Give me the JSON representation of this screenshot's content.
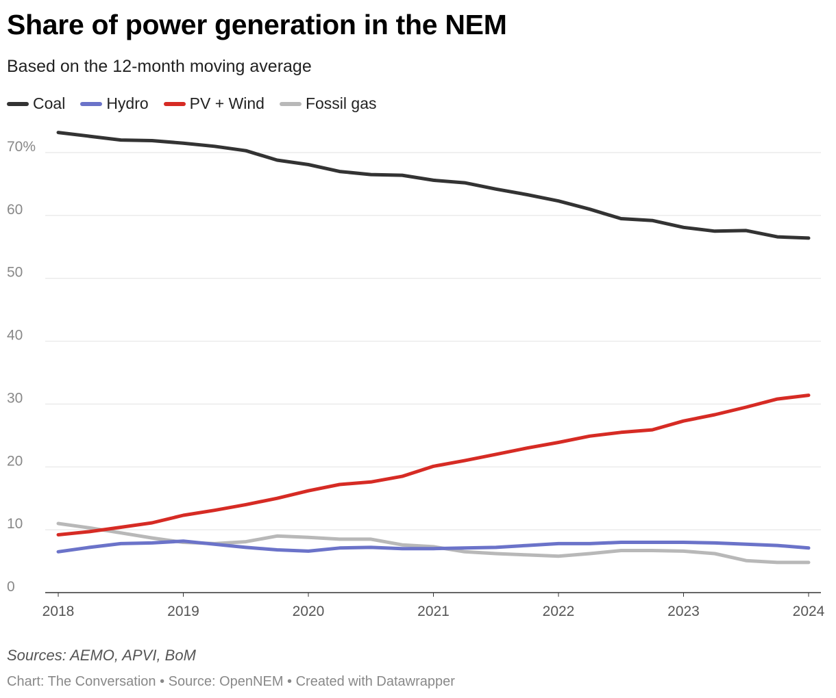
{
  "title": "Share of power generation in the NEM",
  "subtitle": "Based on the 12-month moving average",
  "source": "Sources: AEMO, APVI, BoM",
  "credit": "Chart: The Conversation • Source: OpenNEM • Created with Datawrapper",
  "legend": [
    {
      "label": "Coal",
      "color": "#333333"
    },
    {
      "label": "Hydro",
      "color": "#6b73c9"
    },
    {
      "label": "PV + Wind",
      "color": "#d62b24"
    },
    {
      "label": "Fossil gas",
      "color": "#b8b8b8"
    }
  ],
  "chart_data": {
    "type": "line",
    "xlabel": "",
    "ylabel": "",
    "xlim": [
      2018,
      2024
    ],
    "ylim": [
      0,
      70
    ],
    "y_ticks": [
      0,
      10,
      20,
      30,
      40,
      50,
      60,
      70
    ],
    "y_tick_labels": [
      "0",
      "10",
      "20",
      "30",
      "40",
      "50",
      "60",
      "70%"
    ],
    "x_ticks": [
      2018,
      2019,
      2020,
      2021,
      2022,
      2023,
      2024
    ],
    "x_tick_labels": [
      "2018",
      "2019",
      "2020",
      "2021",
      "2022",
      "2023",
      "2024"
    ],
    "grid": true,
    "legend_position": "top-left",
    "series": [
      {
        "name": "Coal",
        "color": "#333333",
        "points": [
          [
            2018.0,
            73.2
          ],
          [
            2018.25,
            72.6
          ],
          [
            2018.5,
            72.0
          ],
          [
            2018.75,
            71.9
          ],
          [
            2019.0,
            71.5
          ],
          [
            2019.25,
            71.0
          ],
          [
            2019.5,
            70.3
          ],
          [
            2019.75,
            68.8
          ],
          [
            2020.0,
            68.1
          ],
          [
            2020.25,
            67.0
          ],
          [
            2020.5,
            66.5
          ],
          [
            2020.75,
            66.4
          ],
          [
            2021.0,
            65.6
          ],
          [
            2021.25,
            65.2
          ],
          [
            2021.5,
            64.2
          ],
          [
            2021.75,
            63.3
          ],
          [
            2022.0,
            62.3
          ],
          [
            2022.25,
            61.0
          ],
          [
            2022.5,
            59.5
          ],
          [
            2022.75,
            59.2
          ],
          [
            2023.0,
            58.1
          ],
          [
            2023.25,
            57.5
          ],
          [
            2023.5,
            57.6
          ],
          [
            2023.75,
            56.6
          ],
          [
            2024.0,
            56.4
          ]
        ]
      },
      {
        "name": "Hydro",
        "color": "#6b73c9",
        "points": [
          [
            2018.0,
            6.5
          ],
          [
            2018.25,
            7.2
          ],
          [
            2018.5,
            7.8
          ],
          [
            2018.75,
            7.9
          ],
          [
            2019.0,
            8.2
          ],
          [
            2019.25,
            7.7
          ],
          [
            2019.5,
            7.2
          ],
          [
            2019.75,
            6.8
          ],
          [
            2020.0,
            6.6
          ],
          [
            2020.25,
            7.1
          ],
          [
            2020.5,
            7.2
          ],
          [
            2020.75,
            7.0
          ],
          [
            2021.0,
            7.0
          ],
          [
            2021.25,
            7.1
          ],
          [
            2021.5,
            7.2
          ],
          [
            2021.75,
            7.5
          ],
          [
            2022.0,
            7.8
          ],
          [
            2022.25,
            7.8
          ],
          [
            2022.5,
            8.0
          ],
          [
            2022.75,
            8.0
          ],
          [
            2023.0,
            8.0
          ],
          [
            2023.25,
            7.9
          ],
          [
            2023.5,
            7.7
          ],
          [
            2023.75,
            7.5
          ],
          [
            2024.0,
            7.1
          ]
        ]
      },
      {
        "name": "PV + Wind",
        "color": "#d62b24",
        "points": [
          [
            2018.0,
            9.2
          ],
          [
            2018.25,
            9.7
          ],
          [
            2018.5,
            10.4
          ],
          [
            2018.75,
            11.1
          ],
          [
            2019.0,
            12.3
          ],
          [
            2019.25,
            13.1
          ],
          [
            2019.5,
            14.0
          ],
          [
            2019.75,
            15.0
          ],
          [
            2020.0,
            16.2
          ],
          [
            2020.25,
            17.2
          ],
          [
            2020.5,
            17.6
          ],
          [
            2020.75,
            18.5
          ],
          [
            2021.0,
            20.1
          ],
          [
            2021.25,
            21.0
          ],
          [
            2021.5,
            22.0
          ],
          [
            2021.75,
            23.0
          ],
          [
            2022.0,
            23.9
          ],
          [
            2022.25,
            24.9
          ],
          [
            2022.5,
            25.5
          ],
          [
            2022.75,
            25.9
          ],
          [
            2023.0,
            27.3
          ],
          [
            2023.25,
            28.3
          ],
          [
            2023.5,
            29.5
          ],
          [
            2023.75,
            30.8
          ],
          [
            2024.0,
            31.4
          ]
        ]
      },
      {
        "name": "Fossil gas",
        "color": "#b8b8b8",
        "points": [
          [
            2018.0,
            11.0
          ],
          [
            2018.25,
            10.3
          ],
          [
            2018.5,
            9.5
          ],
          [
            2018.75,
            8.7
          ],
          [
            2019.0,
            8.0
          ],
          [
            2019.25,
            7.8
          ],
          [
            2019.5,
            8.1
          ],
          [
            2019.75,
            9.0
          ],
          [
            2020.0,
            8.8
          ],
          [
            2020.25,
            8.5
          ],
          [
            2020.5,
            8.5
          ],
          [
            2020.75,
            7.6
          ],
          [
            2021.0,
            7.3
          ],
          [
            2021.25,
            6.5
          ],
          [
            2021.5,
            6.2
          ],
          [
            2021.75,
            6.0
          ],
          [
            2022.0,
            5.8
          ],
          [
            2022.25,
            6.2
          ],
          [
            2022.5,
            6.7
          ],
          [
            2022.75,
            6.7
          ],
          [
            2023.0,
            6.6
          ],
          [
            2023.25,
            6.2
          ],
          [
            2023.5,
            5.1
          ],
          [
            2023.75,
            4.8
          ],
          [
            2024.0,
            4.8
          ]
        ]
      }
    ]
  }
}
